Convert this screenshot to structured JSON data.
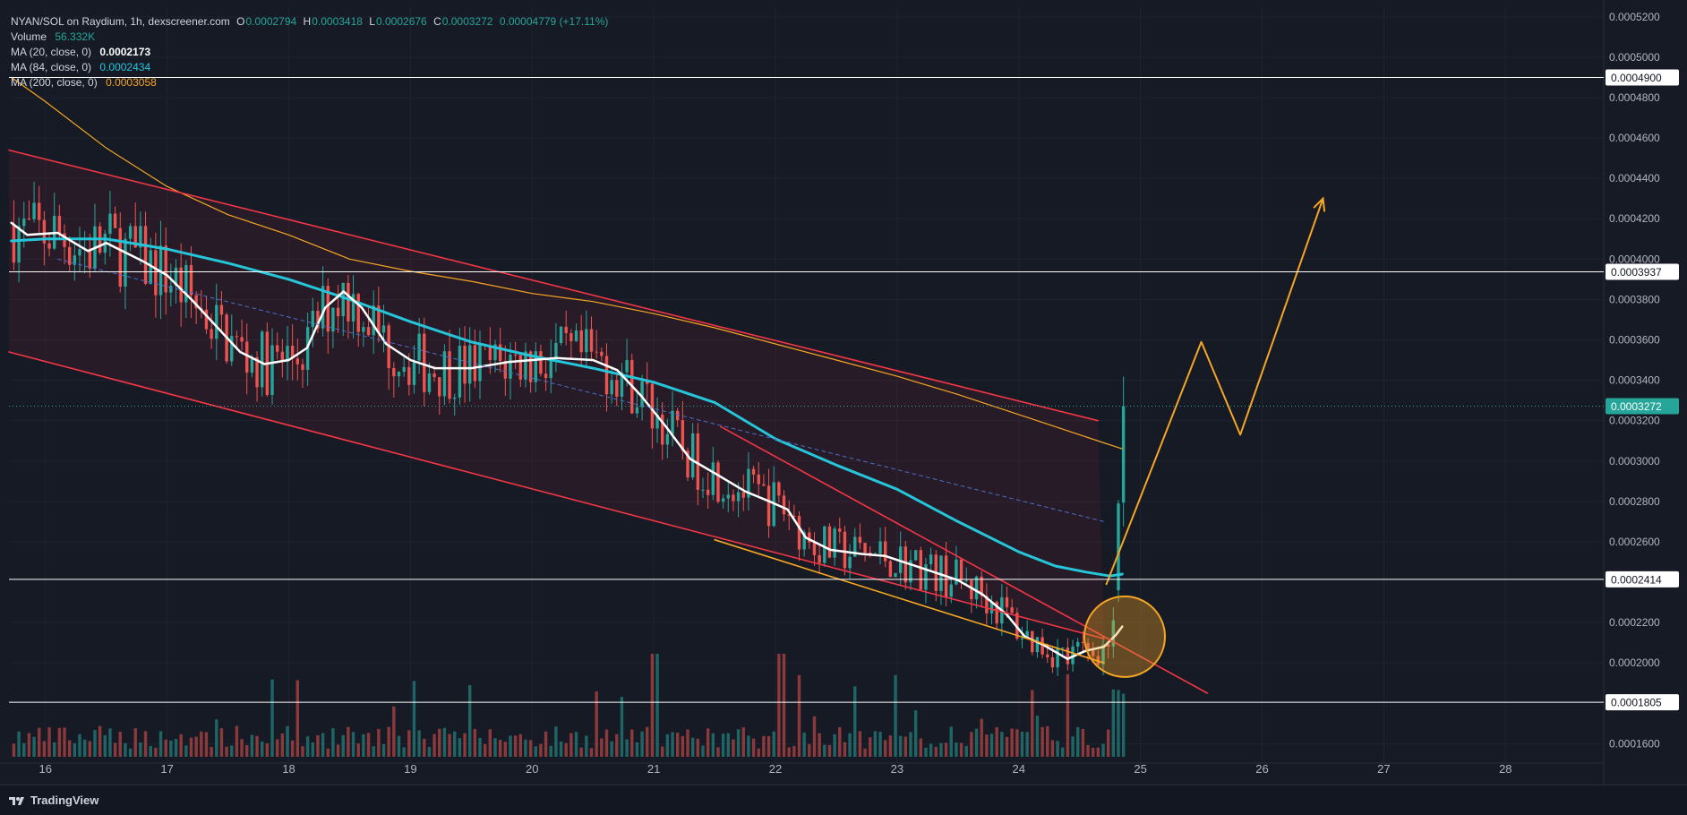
{
  "header": {
    "symbol": "NYAN/SOL on Raydium, 1h, dexscreener.com",
    "ohlc": [
      {
        "key": "O",
        "value": "0.0002794"
      },
      {
        "key": "H",
        "value": "0.0003418"
      },
      {
        "key": "L",
        "value": "0.0002676"
      },
      {
        "key": "C",
        "value": "0.0003272"
      }
    ],
    "change": "0.00004779 (+17.11%)",
    "volume_label": "Volume",
    "volume_value": "56.332K",
    "ma20_label": "MA (20, close, 0)",
    "ma20_value": "0.0002173",
    "ma84_label": "MA (84, close, 0)",
    "ma84_value": "0.0002434",
    "ma200_label": "MA (200, close, 0)",
    "ma200_value": "0.0003058"
  },
  "footer": {
    "brand": "TradingView"
  },
  "colors": {
    "background": "#161a25",
    "up": "#26a69a",
    "down": "#ef5350",
    "ma20": "#ffffff",
    "ma84": "#26c6da",
    "ma200": "#f5a623",
    "channel": "#f23645",
    "projection": "#f5a623",
    "last_price_badge": "#26a69a"
  },
  "chart_data": {
    "type": "candlestick",
    "timeframe": "1h",
    "x_axis": {
      "tick_labels": [
        "16",
        "17",
        "18",
        "19",
        "20",
        "21",
        "22",
        "23",
        "24",
        "25",
        "26",
        "27",
        "28"
      ],
      "range": [
        15.7,
        28.8
      ]
    },
    "y_axis": {
      "tick_labels": [
        "0.0005200",
        "0.0005000",
        "0.0004800",
        "0.0004600",
        "0.0004400",
        "0.0004200",
        "0.0004000",
        "0.0003800",
        "0.0003600",
        "0.0003400",
        "0.0003200",
        "0.0003000",
        "0.0002800",
        "0.0002600",
        "0.0002200",
        "0.0002000",
        "0.0001600"
      ],
      "ticks": [
        0.00052,
        0.0005,
        0.00048,
        0.00046,
        0.00044,
        0.00042,
        0.0004,
        0.00038,
        0.00036,
        0.00034,
        0.00032,
        0.0003,
        0.00028,
        0.00026,
        0.00022,
        0.0002,
        0.00016
      ],
      "range": [
        0.0001535,
        0.0005248
      ]
    },
    "horizontal_levels": [
      {
        "value": 0.00049,
        "label": "0.0004900"
      },
      {
        "value": 0.0003937,
        "label": "0.0003937"
      },
      {
        "value": 0.0002414,
        "label": "0.0002414"
      },
      {
        "value": 0.0001805,
        "label": "0.0001805"
      }
    ],
    "last_price": {
      "value": 0.0003272,
      "label": "0.0003272"
    },
    "ma20": [
      [
        15.72,
        0.000418
      ],
      [
        15.85,
        0.000412
      ],
      [
        16.1,
        0.000413
      ],
      [
        16.35,
        0.000404
      ],
      [
        16.5,
        0.000408
      ],
      [
        16.8,
        0.000399
      ],
      [
        17.0,
        0.000392
      ],
      [
        17.2,
        0.00038
      ],
      [
        17.4,
        0.000367
      ],
      [
        17.6,
        0.000354
      ],
      [
        17.8,
        0.000348
      ],
      [
        18.0,
        0.00035
      ],
      [
        18.15,
        0.000356
      ],
      [
        18.3,
        0.000376
      ],
      [
        18.45,
        0.000384
      ],
      [
        18.6,
        0.000376
      ],
      [
        18.8,
        0.000358
      ],
      [
        19.0,
        0.00035
      ],
      [
        19.2,
        0.000346
      ],
      [
        19.5,
        0.000346
      ],
      [
        19.8,
        0.000349
      ],
      [
        20.2,
        0.000351
      ],
      [
        20.5,
        0.00035
      ],
      [
        20.7,
        0.000345
      ],
      [
        20.9,
        0.000332
      ],
      [
        21.1,
        0.000317
      ],
      [
        21.3,
        0.000301
      ],
      [
        21.5,
        0.000294
      ],
      [
        21.75,
        0.000285
      ],
      [
        21.95,
        0.00028
      ],
      [
        22.1,
        0.000276
      ],
      [
        22.25,
        0.000262
      ],
      [
        22.45,
        0.000256
      ],
      [
        22.7,
        0.000254
      ],
      [
        22.9,
        0.000253
      ],
      [
        23.1,
        0.000249
      ],
      [
        23.3,
        0.000245
      ],
      [
        23.5,
        0.000241
      ],
      [
        23.7,
        0.000234
      ],
      [
        23.9,
        0.000224
      ],
      [
        24.05,
        0.000213
      ],
      [
        24.2,
        0.000209
      ],
      [
        24.4,
        0.000202
      ],
      [
        24.55,
        0.000206
      ],
      [
        24.7,
        0.000208
      ],
      [
        24.8,
        0.000214
      ],
      [
        24.85,
        0.000218
      ]
    ],
    "ma84": [
      [
        15.72,
        0.000409
      ],
      [
        16.0,
        0.00041
      ],
      [
        16.5,
        0.00041
      ],
      [
        17.0,
        0.000405
      ],
      [
        17.5,
        0.000398
      ],
      [
        18.0,
        0.00039
      ],
      [
        18.5,
        0.00038
      ],
      [
        19.0,
        0.000369
      ],
      [
        19.5,
        0.000359
      ],
      [
        20.0,
        0.000352
      ],
      [
        20.5,
        0.000346
      ],
      [
        21.0,
        0.000339
      ],
      [
        21.5,
        0.000329
      ],
      [
        22.0,
        0.000311
      ],
      [
        22.5,
        0.000298
      ],
      [
        23.0,
        0.000286
      ],
      [
        23.5,
        0.00027
      ],
      [
        24.0,
        0.000255
      ],
      [
        24.3,
        0.000248
      ],
      [
        24.55,
        0.000245
      ],
      [
        24.75,
        0.000243
      ],
      [
        24.85,
        0.000244
      ]
    ],
    "ma200": [
      [
        15.72,
        0.00049
      ],
      [
        16.0,
        0.000478
      ],
      [
        16.5,
        0.000455
      ],
      [
        17.0,
        0.000436
      ],
      [
        17.5,
        0.000422
      ],
      [
        18.0,
        0.000412
      ],
      [
        18.5,
        0.0004
      ],
      [
        19.0,
        0.000394
      ],
      [
        19.5,
        0.000389
      ],
      [
        20.0,
        0.000383
      ],
      [
        20.5,
        0.000379
      ],
      [
        21.0,
        0.000373
      ],
      [
        21.5,
        0.000366
      ],
      [
        22.0,
        0.000358
      ],
      [
        22.5,
        0.00035
      ],
      [
        23.0,
        0.000342
      ],
      [
        23.5,
        0.000333
      ],
      [
        24.0,
        0.000323
      ],
      [
        24.4,
        0.000315
      ],
      [
        24.7,
        0.000309
      ],
      [
        24.85,
        0.000306
      ]
    ],
    "drawings": {
      "channel_upper": [
        [
          15.7,
          0.000454
        ],
        [
          24.65,
          0.00032
        ]
      ],
      "channel_lower": [
        [
          15.7,
          0.000354
        ],
        [
          24.7,
          0.000212
        ]
      ],
      "channel_mid_dashed": [
        [
          16.1,
          0.0004
        ],
        [
          24.7,
          0.00027
        ]
      ],
      "wedge_upper": [
        [
          21.55,
          0.000317
        ],
        [
          25.55,
          0.000185
        ]
      ],
      "wedge_lower": [
        [
          21.5,
          0.000261
        ],
        [
          24.7,
          0.0002
        ]
      ],
      "projection": [
        [
          24.72,
          0.000239
        ],
        [
          25.5,
          0.000359
        ],
        [
          25.82,
          0.000313
        ],
        [
          26.5,
          0.00043
        ]
      ],
      "highlight_circle": {
        "x": 24.87,
        "y": 0.000213
      }
    },
    "volume_baseline_fraction_of_max": [
      0.14,
      0.24,
      0.36,
      0.47,
      0.58,
      0.7,
      0.82,
      1.0
    ]
  }
}
